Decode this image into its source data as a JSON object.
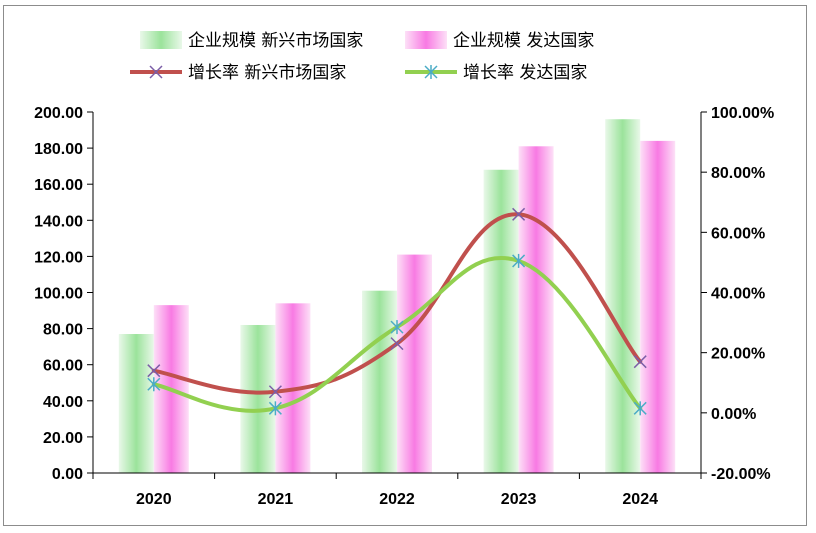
{
  "chart_data": {
    "type": "bar",
    "categories": [
      "2020",
      "2021",
      "2022",
      "2023",
      "2024"
    ],
    "series": [
      {
        "name": "企业规模 新兴市场国家",
        "kind": "bar",
        "axis": "left",
        "color": "#9be39b",
        "values": [
          77,
          82,
          101,
          168,
          196
        ]
      },
      {
        "name": "企业规模 发达国家",
        "kind": "bar",
        "axis": "left",
        "color": "#f87ae3",
        "values": [
          93,
          94,
          121,
          181,
          184
        ]
      },
      {
        "name": "增长率 新兴市场国家",
        "kind": "line",
        "axis": "right",
        "color": "#c0504d",
        "marker": "x",
        "values": [
          14.0,
          7.0,
          23.0,
          66.0,
          17.0
        ]
      },
      {
        "name": "增长率 发达国家",
        "kind": "line",
        "axis": "right",
        "color": "#92d050",
        "marker": "star",
        "values": [
          9.5,
          1.5,
          28.5,
          50.5,
          1.5
        ]
      }
    ],
    "y_left": {
      "min": 0,
      "max": 200,
      "step": 20,
      "tick_labels": [
        "0.00",
        "20.00",
        "40.00",
        "60.00",
        "80.00",
        "100.00",
        "120.00",
        "140.00",
        "160.00",
        "180.00",
        "200.00"
      ]
    },
    "y_right": {
      "min": -20,
      "max": 100,
      "step": 20,
      "tick_labels": [
        "-20.00%",
        "0.00%",
        "20.00%",
        "40.00%",
        "60.00%",
        "80.00%",
        "100.00%"
      ]
    },
    "legend_position": "top",
    "grid": false
  }
}
